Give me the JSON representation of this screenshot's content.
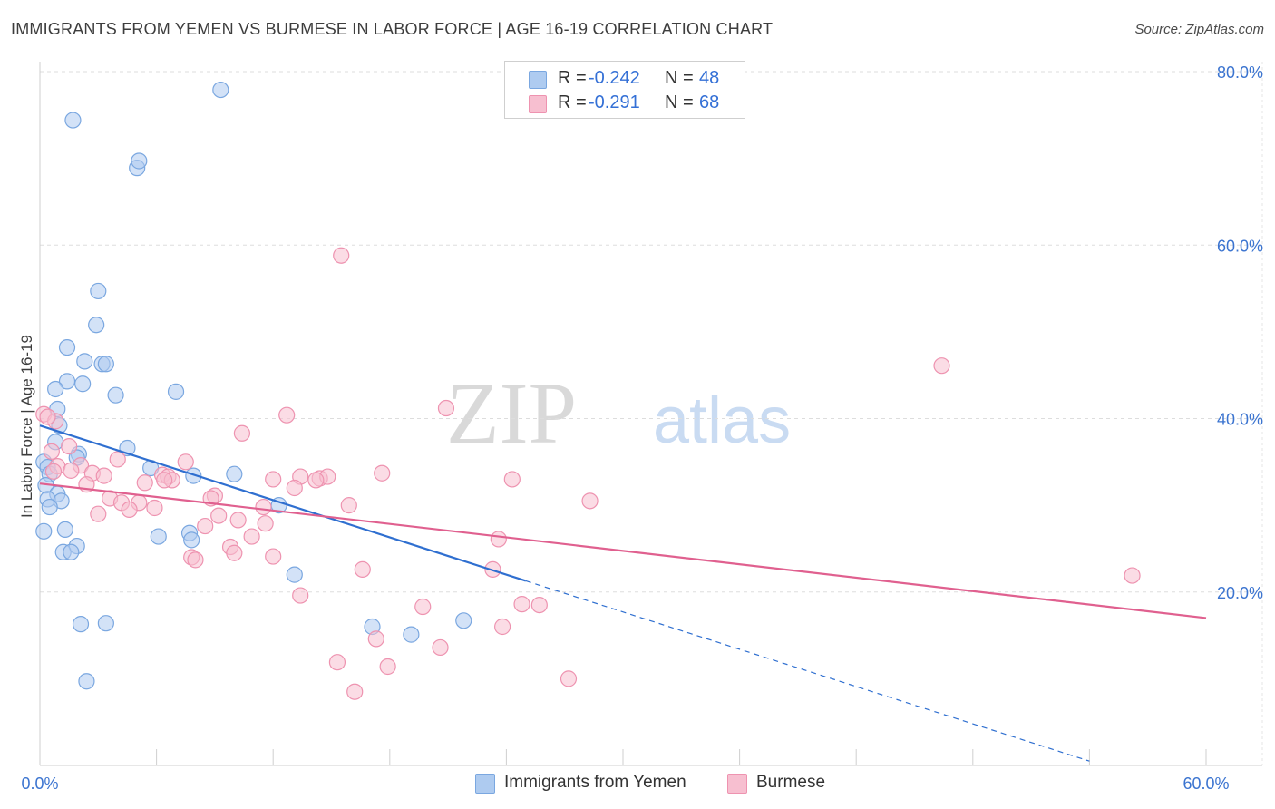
{
  "header": {
    "title": "IMMIGRANTS FROM YEMEN VS BURMESE IN LABOR FORCE | AGE 16-19 CORRELATION CHART",
    "source": "Source: ZipAtlas.com"
  },
  "watermark": {
    "zip": "ZIP",
    "atlas": "atlas"
  },
  "legend": {
    "r_label": "R =",
    "n_label": "N =",
    "series": [
      {
        "name": "Immigrants from Yemen",
        "r": "-0.242",
        "n": "48",
        "fill": "#aecbf0",
        "stroke": "#7aa7e0"
      },
      {
        "name": "Burmese",
        "r": "-0.291",
        "n": "68",
        "fill": "#f7bfd0",
        "stroke": "#ee93b0"
      }
    ]
  },
  "colors": {
    "yemen_line": "#2f6fd0",
    "burmese_line": "#e0608f",
    "tick_label": "#3b74d0",
    "grid": "#dddddd"
  },
  "chart_data": {
    "type": "scatter",
    "title": "IMMIGRANTS FROM YEMEN VS BURMESE IN LABOR FORCE | AGE 16-19 CORRELATION CHART",
    "xlabel": "",
    "ylabel": "In Labor Force | Age 16-19",
    "xlim": [
      0,
      60
    ],
    "ylim": [
      0,
      80
    ],
    "x_tick_labels": [
      {
        "value": 0,
        "label": "0.0%"
      },
      {
        "value": 60,
        "label": "60.0%"
      }
    ],
    "y_tick_labels": [
      {
        "value": 20,
        "label": "20.0%"
      },
      {
        "value": 40,
        "label": "40.0%"
      },
      {
        "value": 60,
        "label": "60.0%"
      },
      {
        "value": 80,
        "label": "80.0%"
      }
    ],
    "grid": true,
    "legend_position": "top-center",
    "series": [
      {
        "name": "Immigrants from Yemen",
        "points": [
          [
            1.7,
            74.4
          ],
          [
            9.3,
            77.9
          ],
          [
            5.0,
            68.9
          ],
          [
            5.1,
            69.7
          ],
          [
            3.0,
            54.7
          ],
          [
            2.9,
            50.8
          ],
          [
            1.4,
            48.2
          ],
          [
            2.3,
            46.6
          ],
          [
            3.2,
            46.3
          ],
          [
            3.4,
            46.3
          ],
          [
            1.4,
            44.3
          ],
          [
            2.2,
            44.0
          ],
          [
            0.8,
            43.4
          ],
          [
            3.9,
            42.7
          ],
          [
            7.0,
            43.1
          ],
          [
            0.9,
            41.1
          ],
          [
            1.0,
            39.2
          ],
          [
            0.8,
            37.3
          ],
          [
            4.5,
            36.6
          ],
          [
            2.0,
            35.9
          ],
          [
            1.9,
            35.5
          ],
          [
            0.2,
            35.0
          ],
          [
            0.4,
            34.4
          ],
          [
            5.7,
            34.3
          ],
          [
            0.5,
            33.6
          ],
          [
            7.9,
            33.4
          ],
          [
            10.0,
            33.6
          ],
          [
            0.3,
            32.3
          ],
          [
            0.9,
            31.3
          ],
          [
            0.4,
            30.7
          ],
          [
            1.1,
            30.5
          ],
          [
            0.5,
            29.8
          ],
          [
            12.3,
            30.0
          ],
          [
            1.3,
            27.2
          ],
          [
            0.2,
            27.0
          ],
          [
            7.7,
            26.8
          ],
          [
            6.1,
            26.4
          ],
          [
            7.8,
            26.0
          ],
          [
            1.9,
            25.3
          ],
          [
            1.2,
            24.6
          ],
          [
            1.6,
            24.6
          ],
          [
            13.1,
            22.0
          ],
          [
            2.1,
            16.3
          ],
          [
            3.4,
            16.4
          ],
          [
            17.1,
            16.0
          ],
          [
            21.8,
            16.7
          ],
          [
            19.1,
            15.1
          ],
          [
            2.4,
            9.7
          ]
        ]
      },
      {
        "name": "Burmese",
        "points": [
          [
            15.5,
            58.8
          ],
          [
            46.4,
            46.1
          ],
          [
            20.9,
            41.2
          ],
          [
            12.7,
            40.4
          ],
          [
            0.2,
            40.5
          ],
          [
            0.8,
            39.7
          ],
          [
            10.4,
            38.3
          ],
          [
            1.5,
            36.8
          ],
          [
            0.6,
            36.2
          ],
          [
            4.0,
            35.3
          ],
          [
            7.5,
            35.0
          ],
          [
            2.1,
            34.6
          ],
          [
            0.9,
            34.5
          ],
          [
            1.6,
            34.0
          ],
          [
            0.7,
            33.9
          ],
          [
            2.7,
            33.7
          ],
          [
            17.6,
            33.7
          ],
          [
            3.3,
            33.4
          ],
          [
            6.3,
            33.5
          ],
          [
            6.6,
            33.3
          ],
          [
            6.8,
            32.9
          ],
          [
            12.0,
            33.0
          ],
          [
            13.4,
            33.3
          ],
          [
            14.4,
            33.1
          ],
          [
            14.8,
            33.3
          ],
          [
            14.2,
            32.9
          ],
          [
            24.3,
            33.0
          ],
          [
            5.4,
            32.6
          ],
          [
            2.4,
            32.4
          ],
          [
            13.1,
            32.0
          ],
          [
            9.0,
            31.1
          ],
          [
            8.8,
            30.8
          ],
          [
            3.6,
            30.8
          ],
          [
            4.2,
            30.3
          ],
          [
            5.1,
            30.3
          ],
          [
            28.3,
            30.5
          ],
          [
            15.9,
            30.0
          ],
          [
            4.6,
            29.5
          ],
          [
            5.9,
            29.7
          ],
          [
            11.5,
            29.8
          ],
          [
            3.0,
            29.0
          ],
          [
            9.2,
            28.8
          ],
          [
            10.2,
            28.3
          ],
          [
            11.6,
            27.9
          ],
          [
            8.5,
            27.6
          ],
          [
            10.9,
            26.4
          ],
          [
            23.6,
            26.1
          ],
          [
            9.8,
            25.2
          ],
          [
            10.0,
            24.5
          ],
          [
            7.8,
            24.0
          ],
          [
            12.0,
            24.1
          ],
          [
            8.0,
            23.7
          ],
          [
            16.6,
            22.6
          ],
          [
            23.3,
            22.6
          ],
          [
            56.2,
            21.9
          ],
          [
            13.4,
            19.6
          ],
          [
            24.8,
            18.6
          ],
          [
            25.7,
            18.5
          ],
          [
            19.7,
            18.3
          ],
          [
            23.8,
            16.0
          ],
          [
            17.3,
            14.6
          ],
          [
            20.6,
            13.6
          ],
          [
            15.3,
            11.9
          ],
          [
            17.9,
            11.4
          ],
          [
            27.2,
            10.0
          ],
          [
            16.2,
            8.5
          ],
          [
            0.4,
            40.2
          ],
          [
            6.4,
            32.9
          ]
        ]
      }
    ],
    "trend_lines": [
      {
        "series": "Immigrants from Yemen",
        "x0": 0,
        "y0": 39.2,
        "x_solid_end": 25.0,
        "x1": 54.0,
        "y1": 0.5
      },
      {
        "series": "Burmese",
        "x0": 0,
        "y0": 32.5,
        "x1": 60,
        "y1": 17.0
      }
    ]
  }
}
